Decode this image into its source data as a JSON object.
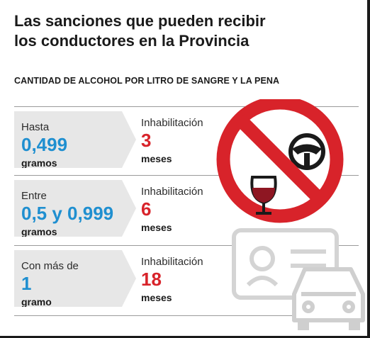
{
  "title": {
    "line1": "Las sanciones que pueden recibir",
    "line2": "los conductores en la Provincia"
  },
  "subtitle": "CANTIDAD DE ALCOHOL POR LITRO DE SANGRE Y LA PENA",
  "rows": [
    {
      "condition_label": "Hasta",
      "condition_value": "0,499",
      "condition_unit": "gramos",
      "penalty_label": "Inhabilitación",
      "penalty_value": "3",
      "penalty_unit": "meses"
    },
    {
      "condition_label": "Entre",
      "condition_value": "0,5 y 0,999",
      "condition_unit": "gramos",
      "penalty_label": "Inhabilitación",
      "penalty_value": "6",
      "penalty_unit": "meses"
    },
    {
      "condition_label": "Con más de",
      "condition_value": "1",
      "condition_unit": "gramo",
      "penalty_label": "Inhabilitación",
      "penalty_value": "18",
      "penalty_unit": "meses"
    }
  ],
  "colors": {
    "condition_value": "#1f8fd0",
    "penalty_value": "#d8232a",
    "prohibition_sign": "#d8232a",
    "arrow_background": "#e7e7e7"
  },
  "icons": [
    "prohibition-sign-icon",
    "steering-wheel-icon",
    "wine-glass-icon",
    "driver-license-icon",
    "car-icon"
  ]
}
